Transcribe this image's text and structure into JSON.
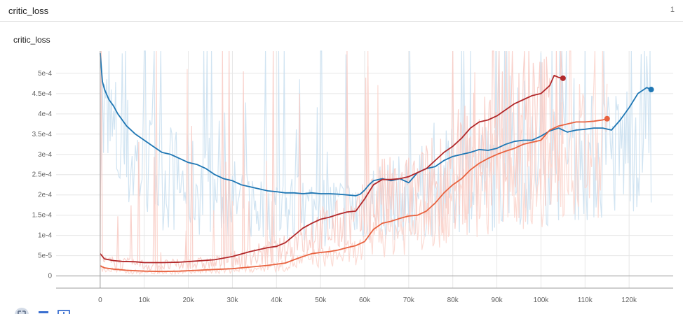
{
  "header": {
    "title": "critic_loss",
    "count": "1"
  },
  "card": {
    "title": "critic_loss"
  },
  "toolbar": {
    "expand_icon": "fullscreen-icon",
    "data_icon": "menu-icon",
    "fit_icon": "fit-domain-icon"
  },
  "chart_data": {
    "type": "line",
    "title": "critic_loss",
    "xlabel": "",
    "ylabel": "",
    "xlim": [
      -10000,
      130000
    ],
    "ylim": [
      -3e-05,
      0.000555
    ],
    "x_ticks": [
      0,
      10000,
      20000,
      30000,
      40000,
      50000,
      60000,
      70000,
      80000,
      90000,
      100000,
      110000,
      120000
    ],
    "x_tick_labels": [
      "0",
      "10k",
      "20k",
      "30k",
      "40k",
      "50k",
      "60k",
      "70k",
      "80k",
      "90k",
      "100k",
      "110k",
      "120k"
    ],
    "y_ticks": [
      0,
      5e-05,
      0.0001,
      0.00015,
      0.0002,
      0.00025,
      0.0003,
      0.00035,
      0.0004,
      0.00045,
      0.0005
    ],
    "y_tick_labels": [
      "0",
      "5e-5",
      "1e-4",
      "1.5e-4",
      "2e-4",
      "2.5e-4",
      "3e-4",
      "3.5e-4",
      "4e-4",
      "4.5e-4",
      "5e-4"
    ],
    "grid": true,
    "series": [
      {
        "color": "#1f77b4",
        "raw_color": "#c9dff0",
        "end_marker": true,
        "x": [
          0,
          500,
          1000,
          2000,
          3000,
          4000,
          6000,
          8000,
          10000,
          12000,
          14000,
          16000,
          18000,
          20000,
          22000,
          24000,
          26000,
          28000,
          30000,
          32000,
          34000,
          36000,
          38000,
          40000,
          42000,
          44000,
          46000,
          48000,
          50000,
          52000,
          54000,
          56000,
          58000,
          59000,
          60000,
          61000,
          62000,
          64000,
          66000,
          68000,
          70000,
          72000,
          74000,
          76000,
          78000,
          80000,
          82000,
          84000,
          86000,
          88000,
          90000,
          92000,
          94000,
          96000,
          98000,
          100000,
          102000,
          104000,
          106000,
          108000,
          110000,
          112000,
          114000,
          116000,
          118000,
          120000,
          122000,
          124000,
          125000
        ],
        "values": [
          0.00055,
          0.00048,
          0.00046,
          0.000435,
          0.00042,
          0.0004,
          0.00037,
          0.00035,
          0.000335,
          0.00032,
          0.000305,
          0.0003,
          0.00029,
          0.00028,
          0.000275,
          0.000265,
          0.00025,
          0.00024,
          0.000235,
          0.000225,
          0.00022,
          0.000215,
          0.00021,
          0.000208,
          0.000205,
          0.000205,
          0.000203,
          0.000205,
          0.000203,
          0.000203,
          0.000202,
          0.0002,
          0.000198,
          0.000202,
          0.000212,
          0.000225,
          0.000235,
          0.00024,
          0.000235,
          0.00024,
          0.00023,
          0.000255,
          0.000265,
          0.00027,
          0.000285,
          0.000295,
          0.0003,
          0.000305,
          0.000312,
          0.00031,
          0.000315,
          0.000325,
          0.000332,
          0.000335,
          0.000335,
          0.000345,
          0.000358,
          0.000365,
          0.000355,
          0.00036,
          0.000362,
          0.000365,
          0.000365,
          0.00036,
          0.000385,
          0.000415,
          0.00045,
          0.000465,
          0.00046
        ]
      },
      {
        "color": "#b2282a",
        "raw_color": "#f8c9c2",
        "end_marker": true,
        "x": [
          0,
          1000,
          3000,
          5000,
          8000,
          10000,
          14000,
          18000,
          22000,
          26000,
          30000,
          34000,
          38000,
          40000,
          42000,
          44000,
          46000,
          48000,
          50000,
          52000,
          54000,
          56000,
          58000,
          60000,
          62000,
          64000,
          66000,
          68000,
          70000,
          72000,
          74000,
          76000,
          78000,
          80000,
          82000,
          84000,
          86000,
          88000,
          90000,
          92000,
          94000,
          96000,
          98000,
          100000,
          102000,
          103000,
          104000,
          105000
        ],
        "values": [
          5.5e-05,
          4.2e-05,
          3.8e-05,
          3.6e-05,
          3.5e-05,
          3.3e-05,
          3.3e-05,
          3.4e-05,
          3.7e-05,
          4e-05,
          4.8e-05,
          6e-05,
          7e-05,
          7.3e-05,
          8.2e-05,
          0.0001,
          0.000118,
          0.00013,
          0.00014,
          0.000145,
          0.000152,
          0.000158,
          0.00016,
          0.00019,
          0.000225,
          0.000238,
          0.000238,
          0.00024,
          0.000245,
          0.000255,
          0.000265,
          0.000285,
          0.000305,
          0.00032,
          0.00034,
          0.000365,
          0.00038,
          0.000385,
          0.000395,
          0.00041,
          0.000425,
          0.000435,
          0.000445,
          0.00045,
          0.00047,
          0.000495,
          0.00049,
          0.000488
        ]
      },
      {
        "color": "#e8623f",
        "raw_color": "#fbd5cc",
        "end_marker": true,
        "x": [
          0,
          1000,
          3000,
          6000,
          10000,
          14000,
          18000,
          22000,
          26000,
          30000,
          34000,
          38000,
          42000,
          44000,
          46000,
          48000,
          50000,
          52000,
          54000,
          56000,
          58000,
          60000,
          62000,
          64000,
          66000,
          68000,
          70000,
          72000,
          74000,
          76000,
          78000,
          80000,
          82000,
          84000,
          86000,
          88000,
          90000,
          92000,
          94000,
          96000,
          98000,
          100000,
          102000,
          104000,
          106000,
          108000,
          110000,
          112000,
          114000,
          115000
        ],
        "values": [
          2.5e-05,
          2e-05,
          1.7e-05,
          1.4e-05,
          1.2e-05,
          1.1e-05,
          1.2e-05,
          1.4e-05,
          1.6e-05,
          1.8e-05,
          2.2e-05,
          2.6e-05,
          3.2e-05,
          4e-05,
          4.8e-05,
          5.5e-05,
          5.8e-05,
          6e-05,
          6.4e-05,
          7e-05,
          7.5e-05,
          8.5e-05,
          0.000115,
          0.00013,
          0.000135,
          0.000142,
          0.000148,
          0.00015,
          0.00016,
          0.00018,
          0.000205,
          0.000225,
          0.00024,
          0.000262,
          0.000278,
          0.00029,
          0.0003,
          0.000308,
          0.000315,
          0.000325,
          0.00033,
          0.000335,
          0.00036,
          0.00037,
          0.000375,
          0.00038,
          0.00038,
          0.000382,
          0.000385,
          0.000388
        ]
      }
    ]
  }
}
